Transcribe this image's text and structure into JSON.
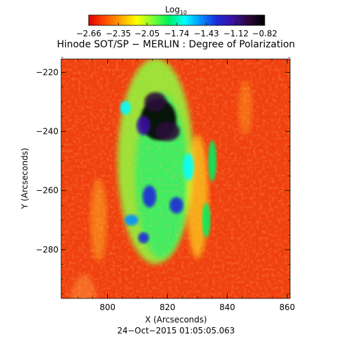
{
  "colorbar": {
    "label_main": "Log",
    "label_sub": "10",
    "ticks": [
      "−2.66",
      "−2.35",
      "−2.05",
      "−1.74",
      "−1.43",
      "−1.12",
      "−0.82"
    ],
    "colors": [
      "#e00000",
      "#ff4a00",
      "#ffa500",
      "#ffff00",
      "#7cff33",
      "#00f060",
      "#00ffff",
      "#0090ff",
      "#1f2ad8",
      "#3a0fa0",
      "#2a0838",
      "#000000"
    ]
  },
  "title": "Hinode SOT/SP − MERLIN : Degree of Polarization",
  "timestamp": "24−Oct−2015 01:05:05.063",
  "chart_data": {
    "type": "heatmap",
    "title": "Hinode SOT/SP − MERLIN : Degree of Polarization",
    "xlabel": "X (Arcseconds)",
    "ylabel": "Y (Arcseconds)",
    "xlim": [
      784.5,
      861
    ],
    "ylim": [
      -296.5,
      -215.5
    ],
    "xticks": [
      800,
      820,
      840,
      860
    ],
    "yticks": [
      -220,
      -240,
      -260,
      -280
    ],
    "colorbar_label": "Log10",
    "colorbar_range": [
      -2.66,
      -0.82
    ],
    "colorbar_ticks": [
      -2.66,
      -2.35,
      -2.05,
      -1.74,
      -1.43,
      -1.12,
      -0.82
    ],
    "features": [
      {
        "x": 817,
        "y": -236,
        "value": -0.9
      },
      {
        "x": 816,
        "y": -230,
        "value": -1.05
      },
      {
        "x": 820,
        "y": -240,
        "value": -1.0
      },
      {
        "x": 812,
        "y": -238,
        "value": -1.2
      },
      {
        "x": 814,
        "y": -262,
        "value": -1.25
      },
      {
        "x": 823,
        "y": -265,
        "value": -1.35
      },
      {
        "x": 812,
        "y": -276,
        "value": -1.3
      },
      {
        "x": 808,
        "y": -270,
        "value": -1.5
      },
      {
        "x": 827,
        "y": -252,
        "value": -1.6
      },
      {
        "x": 806,
        "y": -232,
        "value": -1.6
      },
      {
        "x": 835,
        "y": -250,
        "value": -1.85
      },
      {
        "x": 833,
        "y": -270,
        "value": -1.85
      }
    ]
  }
}
